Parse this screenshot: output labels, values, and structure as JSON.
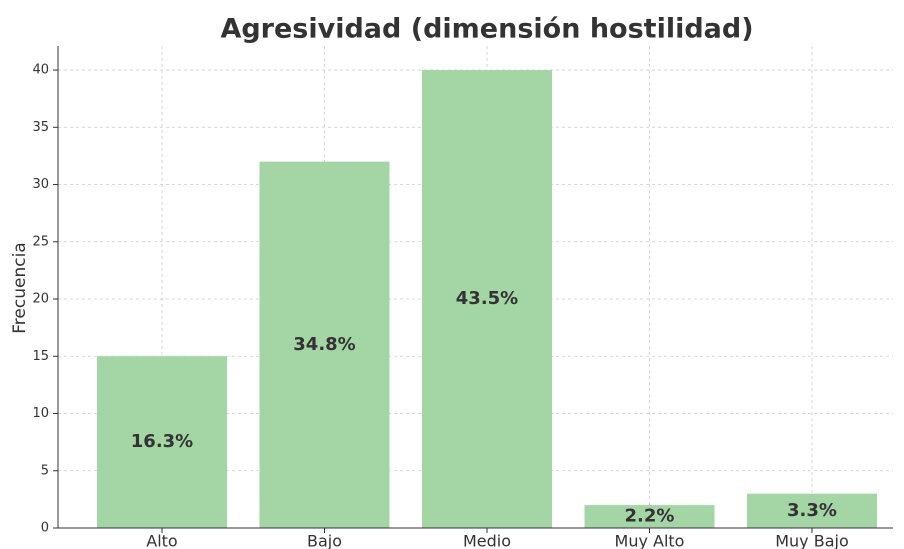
{
  "chart_data": {
    "type": "bar",
    "title": "Agresividad (dimensión hostilidad)",
    "y_label": "Frecuencia",
    "categories": [
      "Alto",
      "Bajo",
      "Medio",
      "Muy Alto",
      "Muy Bajo"
    ],
    "values": [
      15,
      32,
      40,
      2,
      3
    ],
    "percent_labels": [
      "16.3%",
      "34.8%",
      "43.5%",
      "2.2%",
      "3.3%"
    ],
    "color": "#a3d5a5",
    "ylim": [
      0,
      42.1
    ],
    "yticks": [
      0,
      5,
      10,
      15,
      20,
      25,
      30,
      35,
      40
    ],
    "grid": true
  }
}
